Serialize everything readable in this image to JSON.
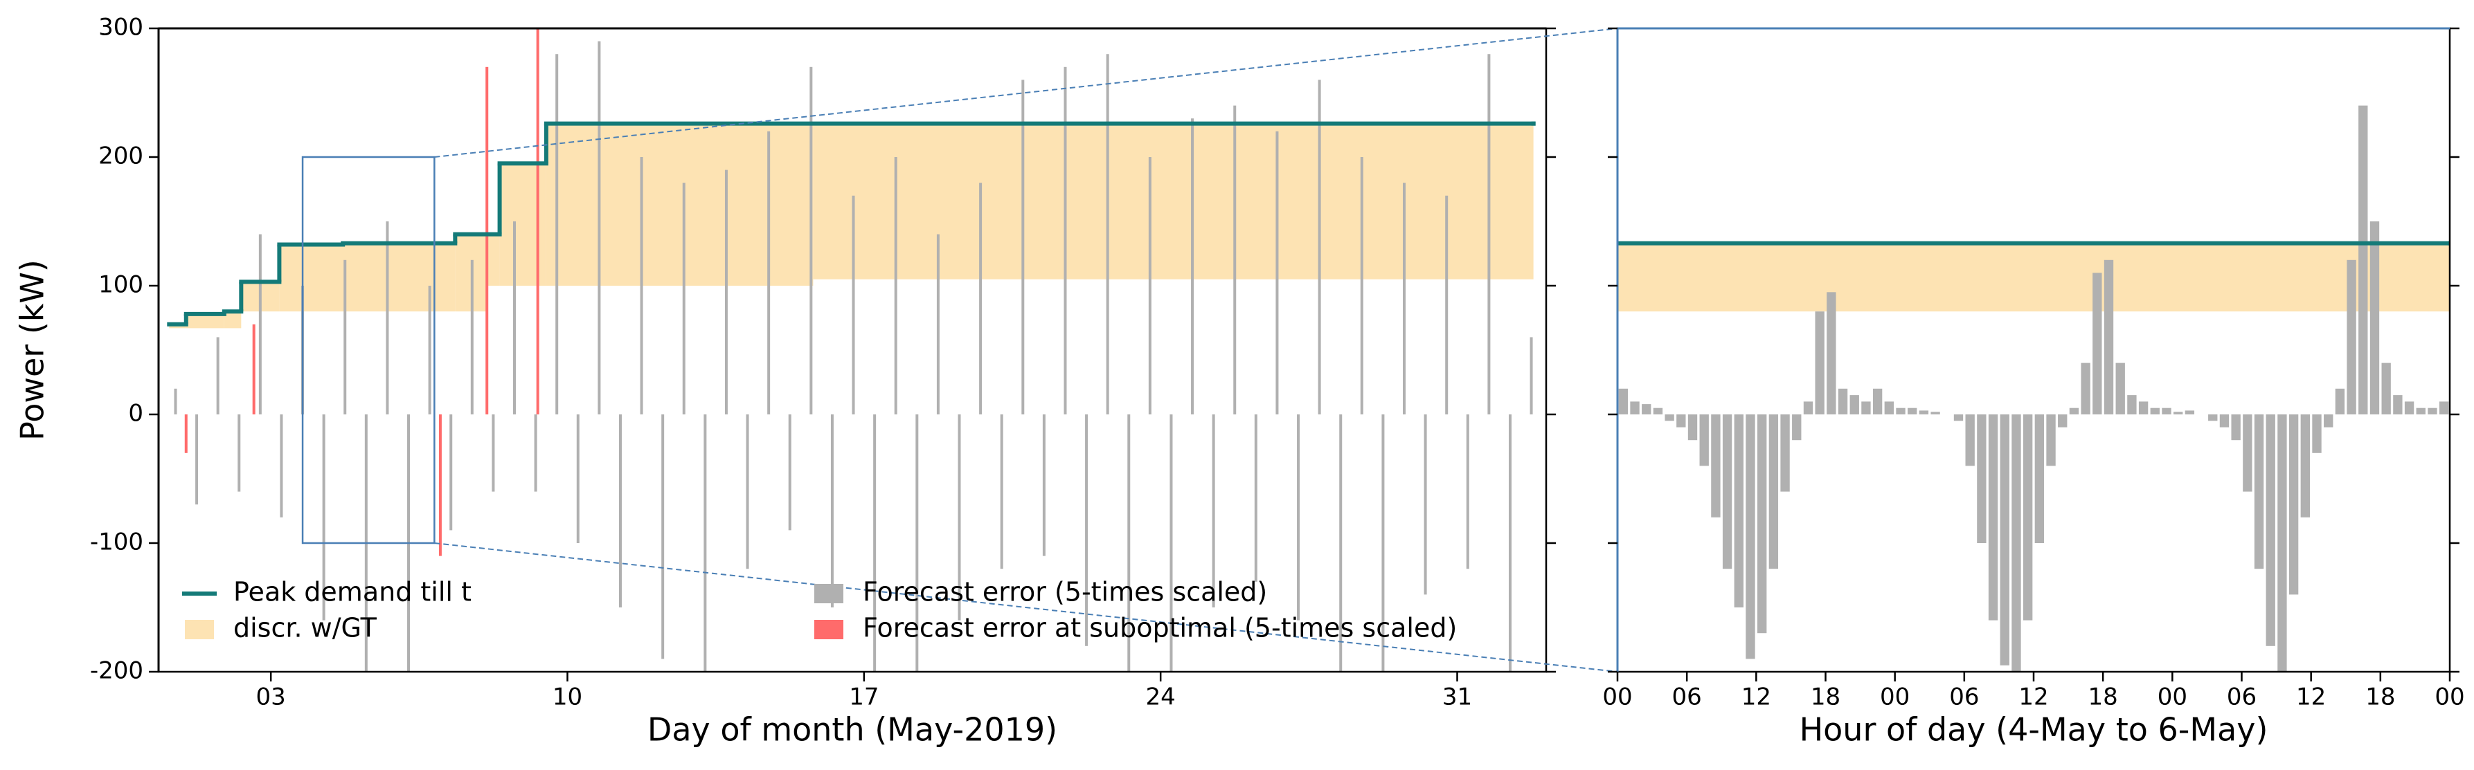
{
  "chart_data": [
    {
      "type": "timeseries",
      "ylabel": "Power (kW)",
      "xlabel": "Day of month (May-2019)",
      "xlim": [
        0.35,
        33.1
      ],
      "ylim": [
        -200,
        300
      ],
      "xticks": [
        {
          "value": 3,
          "label": "03"
        },
        10,
        17,
        24,
        31
      ],
      "yticks": [
        -200,
        -100,
        0,
        100,
        200,
        300
      ],
      "legend": true,
      "frame_color": "#000000",
      "zoom": {
        "xlim": [
          3.75,
          6.86
        ],
        "ylim": [
          -100,
          200
        ],
        "color": "#4a7fb5"
      },
      "series": [
        {
          "name": "Peak demand till t",
          "color": "#147a78",
          "kind": "step",
          "x": [
            0.6,
            1.0,
            1.9,
            2.3,
            3.2,
            4.7,
            7.35,
            8.4,
            9.5,
            32.8
          ],
          "values": [
            70,
            78,
            80,
            103,
            132,
            133,
            140,
            195,
            226,
            226
          ]
        },
        {
          "name": "discr. w/GT",
          "color": "#fde3b3",
          "kind": "band",
          "x": [
            0.6,
            1.0,
            1.9,
            2.3,
            3.2,
            7.35,
            8.1,
            8.4,
            9.5,
            15.8,
            32.8
          ],
          "values": [
            70,
            78,
            80,
            103,
            132,
            140,
            140,
            195,
            226,
            226,
            226
          ],
          "low": [
            67,
            67,
            67,
            80,
            80,
            80,
            100,
            100,
            100,
            105,
            105
          ]
        },
        {
          "name": "Forecast error (5-times scaled)",
          "color": "#b0b0b0",
          "kind": "bar",
          "x": [
            0.75,
            1.25,
            1.75,
            2.25,
            2.75,
            3.25,
            3.75,
            4.25,
            4.75,
            5.25,
            5.75,
            6.25,
            6.75,
            7.25,
            7.75,
            8.25,
            8.75,
            9.25,
            9.75,
            10.25,
            10.75,
            11.25,
            11.75,
            12.25,
            12.75,
            13.25,
            13.75,
            14.25,
            14.75,
            15.25,
            15.75,
            16.25,
            16.75,
            17.25,
            17.75,
            18.25,
            18.75,
            19.25,
            19.75,
            20.25,
            20.75,
            21.25,
            21.75,
            22.25,
            22.75,
            23.25,
            23.75,
            24.25,
            24.75,
            25.25,
            25.75,
            26.25,
            26.75,
            27.25,
            27.75,
            28.25,
            28.75,
            29.25,
            29.75,
            30.25,
            30.75,
            31.25,
            31.75,
            32.25,
            32.75
          ],
          "values": [
            20,
            -70,
            60,
            -60,
            140,
            -80,
            100,
            -160,
            120,
            -200,
            150,
            -200,
            100,
            -90,
            120,
            -60,
            150,
            -60,
            280,
            -100,
            290,
            -150,
            200,
            -190,
            180,
            -200,
            190,
            -120,
            220,
            -90,
            270,
            -150,
            170,
            -200,
            200,
            -200,
            140,
            -160,
            180,
            -120,
            260,
            -110,
            270,
            -180,
            280,
            -200,
            200,
            -200,
            230,
            -150,
            240,
            -130,
            220,
            -160,
            260,
            -200,
            200,
            -200,
            180,
            -140,
            170,
            -120,
            280,
            -200,
            60
          ]
        },
        {
          "name": "Forecast error at suboptimal (5-times scaled)",
          "color": "#ff6b6b",
          "kind": "bar",
          "x": [
            1.0,
            2.6,
            7.0,
            8.1,
            9.3
          ],
          "values": [
            -30,
            70,
            -110,
            270,
            300
          ]
        }
      ]
    },
    {
      "type": "timeseries",
      "xlabel": "Hour of day (4-May to 6-May)",
      "xlim": [
        0,
        72
      ],
      "ylim": [
        -200,
        300
      ],
      "xticks": [
        {
          "value": 0,
          "label": "00"
        },
        {
          "value": 6,
          "label": "06"
        },
        12,
        18,
        {
          "value": 24,
          "label": "00"
        },
        {
          "value": 30,
          "label": "06"
        },
        {
          "value": 36,
          "label": "12"
        },
        {
          "value": 42,
          "label": "18"
        },
        {
          "value": 48,
          "label": "00"
        },
        {
          "value": 54,
          "label": "06"
        },
        {
          "value": 60,
          "label": "12"
        },
        {
          "value": 66,
          "label": "18"
        },
        {
          "value": 72,
          "label": "00"
        }
      ],
      "yticks": [
        -200,
        -100,
        0,
        100,
        200,
        300
      ],
      "ytick_labels": false,
      "legend": false,
      "frame_color": "#4a7fb5",
      "series": [
        {
          "color": "#147a78",
          "kind": "step",
          "x": [
            0,
            72
          ],
          "values": [
            133,
            133
          ]
        },
        {
          "color": "#fde3b3",
          "kind": "band",
          "x": [
            0,
            72
          ],
          "values": [
            133,
            133
          ],
          "low": [
            80,
            80
          ]
        },
        {
          "color": "#b0b0b0",
          "kind": "bar",
          "x": [
            0.5,
            1.5,
            2.5,
            3.5,
            4.5,
            5.5,
            6.5,
            7.5,
            8.5,
            9.5,
            10.5,
            11.5,
            12.5,
            13.5,
            14.5,
            15.5,
            16.5,
            17.5,
            18.5,
            19.5,
            20.5,
            21.5,
            22.5,
            23.5,
            24.5,
            25.5,
            26.5,
            27.5,
            28.5,
            29.5,
            30.5,
            31.5,
            32.5,
            33.5,
            34.5,
            35.5,
            36.5,
            37.5,
            38.5,
            39.5,
            40.5,
            41.5,
            42.5,
            43.5,
            44.5,
            45.5,
            46.5,
            47.5,
            48.5,
            49.5,
            50.5,
            51.5,
            52.5,
            53.5,
            54.5,
            55.5,
            56.5,
            57.5,
            58.5,
            59.5,
            60.5,
            61.5,
            62.5,
            63.5,
            64.5,
            65.5,
            66.5,
            67.5,
            68.5,
            69.5,
            70.5,
            71.5
          ],
          "values": [
            20,
            10,
            8,
            5,
            -5,
            -10,
            -20,
            -40,
            -80,
            -120,
            -150,
            -190,
            -170,
            -120,
            -60,
            -20,
            10,
            80,
            95,
            20,
            15,
            10,
            20,
            10,
            5,
            5,
            3,
            2,
            0,
            -5,
            -40,
            -100,
            -160,
            -195,
            -200,
            -160,
            -100,
            -40,
            -10,
            5,
            40,
            110,
            120,
            40,
            15,
            10,
            5,
            5,
            2,
            3,
            0,
            -5,
            -10,
            -20,
            -60,
            -120,
            -180,
            -200,
            -140,
            -80,
            -30,
            -10,
            20,
            120,
            240,
            150,
            40,
            15,
            10,
            5,
            5,
            10
          ]
        }
      ]
    }
  ]
}
